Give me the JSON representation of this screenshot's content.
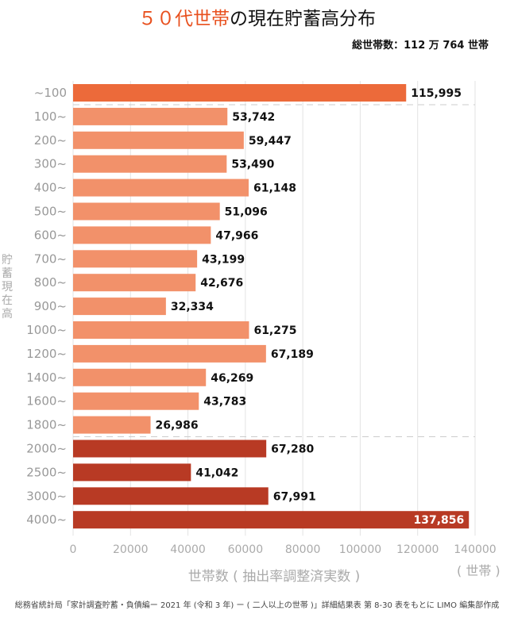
{
  "chart_data": {
    "type": "bar",
    "orientation": "horizontal",
    "title_highlight": "５０代世帯",
    "title_rest": "の現在貯蓄高分布",
    "subtitle": "総世帯数：112 万 764 世帯",
    "ylabel": "貯蓄現在高",
    "xlabel": "世帯数 ( 抽出率調整済実数 )",
    "xunit": "( 世帯 )",
    "xlim": [
      0,
      140000
    ],
    "xticks": [
      "0",
      "20000",
      "40000",
      "60000",
      "80000",
      "100000",
      "120000",
      "140000"
    ],
    "grid": true,
    "categories": [
      "~100",
      "100~",
      "200~",
      "300~",
      "400~",
      "500~",
      "600~",
      "700~",
      "800~",
      "900~",
      "1000~",
      "1200~",
      "1400~",
      "1600~",
      "1800~",
      "2000~",
      "2500~",
      "3000~",
      "4000~"
    ],
    "values": [
      115995,
      53742,
      59447,
      53490,
      61148,
      51096,
      47966,
      43199,
      42676,
      32334,
      61275,
      67189,
      46269,
      43783,
      26986,
      67280,
      41042,
      67991,
      137856
    ],
    "labels": [
      "115,995",
      "53,742",
      "59,447",
      "53,490",
      "61,148",
      "51,096",
      "47,966",
      "43,199",
      "42,676",
      "32,334",
      "61,275",
      "67,189",
      "46,269",
      "43,783",
      "26,986",
      "67,280",
      "41,042",
      "67,991",
      "137,856"
    ],
    "groups": [
      0,
      1,
      1,
      1,
      1,
      1,
      1,
      1,
      1,
      1,
      1,
      1,
      1,
      1,
      1,
      2,
      2,
      2,
      2
    ],
    "colors": [
      "#ec6a3a",
      "#f2916a",
      "#b83a24"
    ],
    "source": "総務省統計局「家計調査貯蓄・負債編ー 2021 年 (令和 3 年) ー ( 二人以上の世帯 )」詳細結果表 第 8-30 表をもとに LIMO 編集部作成"
  }
}
